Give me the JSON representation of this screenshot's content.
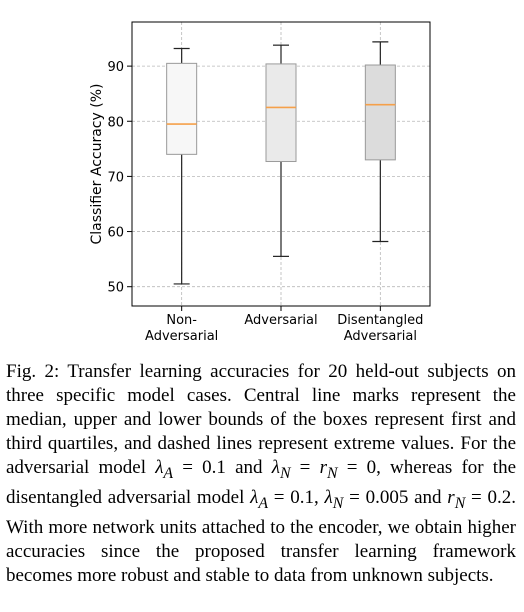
{
  "chart_data": {
    "type": "box",
    "ylabel": "Classifier Accuracy (%)",
    "xlabel": "",
    "ylim": [
      46.5,
      98
    ],
    "yticks": [
      50,
      60,
      70,
      80,
      90
    ],
    "grid": true,
    "categories": [
      {
        "lines": [
          "Non-",
          "Adversarial"
        ]
      },
      {
        "lines": [
          "Adversarial"
        ]
      },
      {
        "lines": [
          "Disentangled",
          "Adversarial"
        ]
      }
    ],
    "boxes": [
      {
        "min": 50.5,
        "q1": 74.0,
        "median": 79.5,
        "q3": 90.5,
        "max": 93.2,
        "fill": "#f7f7f7"
      },
      {
        "min": 55.5,
        "q1": 72.7,
        "median": 82.5,
        "q3": 90.4,
        "max": 93.8,
        "fill": "#eaeaea"
      },
      {
        "min": 58.2,
        "q1": 73.0,
        "median": 83.0,
        "q3": 90.2,
        "max": 94.4,
        "fill": "#dcdcdc"
      }
    ],
    "median_color": "#f5a04a",
    "whisker_color": "#222222",
    "grid_color": "#b8b8b8"
  },
  "caption": {
    "label": "Fig. 2:",
    "t1": " Transfer learning accuracies for 20 held-out subjects on three specific model cases. Central line marks represent the median, upper and lower bounds of the boxes represent first and third quartiles, and dashed lines represent extreme values. For the adversarial model ",
    "m1": "λ",
    "s1": "A",
    "t2": " = 0.1 and ",
    "m2": "λ",
    "s2": "N",
    "t3": " = ",
    "m3": "r",
    "s3": "N",
    "t4": " = 0, whereas for the disentangled adversarial model ",
    "m4": "λ",
    "s4": "A",
    "t5": " = 0.1, ",
    "m5": "λ",
    "s5": "N",
    "t6": " = 0.005 and ",
    "m6": "r",
    "s6": "N",
    "t7": " = 0.2. With more network units attached to the encoder, we obtain higher accuracies since the proposed transfer learning framework becomes more robust and stable to data from unknown subjects."
  }
}
